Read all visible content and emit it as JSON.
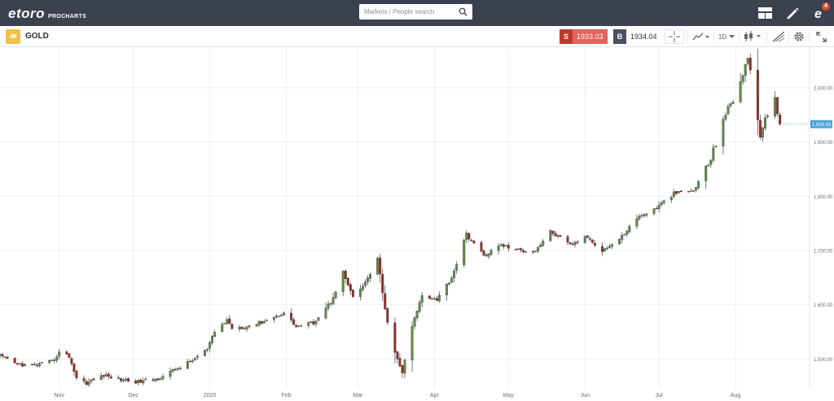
{
  "header": {
    "logo_text": "etoro",
    "logo_sub": "PROCHARTS",
    "search_placeholder": "Markets / People search",
    "notification_count": "4"
  },
  "instrument": {
    "name": "GOLD",
    "sell_label": "S",
    "sell_price": "1933.03",
    "buy_label": "B",
    "buy_price": "1934.04",
    "timeframe": "1D"
  },
  "colors": {
    "topbar": "#3c4150",
    "sell": "#e0645a",
    "sell_letter": "#c0392b",
    "buy_letter": "#4a5060",
    "bull": "#5e8a4a",
    "bear": "#9a2a24",
    "price_tag": "#4aa3d9"
  },
  "chart_data": {
    "type": "candlestick",
    "title": "",
    "grid": true,
    "ylim": [
      1445,
      2075
    ],
    "y_ticks": [
      1500,
      1600,
      1700,
      1800,
      1900,
      2000
    ],
    "y_tick_labels": [
      "1,500.00",
      "1,600.00",
      "1,700.00",
      "1,800.00",
      "1,900.00",
      "2,000.00"
    ],
    "x_tick_labels": [
      {
        "date": "2019-11-01",
        "label": "Nov"
      },
      {
        "date": "2019-12-01",
        "label": "Dec"
      },
      {
        "date": "2020-01-01",
        "label": "2020"
      },
      {
        "date": "2020-02-01",
        "label": "Feb"
      },
      {
        "date": "2020-03-01",
        "label": "Mar"
      },
      {
        "date": "2020-04-01",
        "label": "Apr"
      },
      {
        "date": "2020-05-01",
        "label": "May"
      },
      {
        "date": "2020-06-01",
        "label": "Jun"
      },
      {
        "date": "2020-07-01",
        "label": "Jul"
      },
      {
        "date": "2020-08-01",
        "label": "Aug"
      }
    ],
    "x_start": "2019-10-08",
    "x_end": "2020-08-31",
    "last_price": 1933.03,
    "last_price_label": "1,933.03",
    "close_path": [
      [
        "2019-10-08",
        1505
      ],
      [
        "2019-10-15",
        1490
      ],
      [
        "2019-10-22",
        1488
      ],
      [
        "2019-10-29",
        1495
      ],
      [
        "2019-11-01",
        1512
      ],
      [
        "2019-11-05",
        1505
      ],
      [
        "2019-11-08",
        1465
      ],
      [
        "2019-11-12",
        1456
      ],
      [
        "2019-11-19",
        1470
      ],
      [
        "2019-11-26",
        1462
      ],
      [
        "2019-12-03",
        1458
      ],
      [
        "2019-12-10",
        1462
      ],
      [
        "2019-12-17",
        1478
      ],
      [
        "2019-12-24",
        1495
      ],
      [
        "2019-12-31",
        1518
      ],
      [
        "2020-01-03",
        1550
      ],
      [
        "2020-01-08",
        1572
      ],
      [
        "2020-01-10",
        1558
      ],
      [
        "2020-01-17",
        1560
      ],
      [
        "2020-01-24",
        1572
      ],
      [
        "2020-01-31",
        1585
      ],
      [
        "2020-02-05",
        1560
      ],
      [
        "2020-02-12",
        1567
      ],
      [
        "2020-02-19",
        1605
      ],
      [
        "2020-02-24",
        1660
      ],
      [
        "2020-02-28",
        1612
      ],
      [
        "2020-03-04",
        1640
      ],
      [
        "2020-03-09",
        1685
      ],
      [
        "2020-03-12",
        1590
      ],
      [
        "2020-03-16",
        1510
      ],
      [
        "2020-03-19",
        1475
      ],
      [
        "2020-03-23",
        1560
      ],
      [
        "2020-03-27",
        1618
      ],
      [
        "2020-04-02",
        1610
      ],
      [
        "2020-04-08",
        1650
      ],
      [
        "2020-04-14",
        1730
      ],
      [
        "2020-04-21",
        1690
      ],
      [
        "2020-04-28",
        1710
      ],
      [
        "2020-05-05",
        1700
      ],
      [
        "2020-05-12",
        1700
      ],
      [
        "2020-05-18",
        1735
      ],
      [
        "2020-05-26",
        1710
      ],
      [
        "2020-06-02",
        1725
      ],
      [
        "2020-06-08",
        1700
      ],
      [
        "2020-06-15",
        1720
      ],
      [
        "2020-06-22",
        1760
      ],
      [
        "2020-06-29",
        1775
      ],
      [
        "2020-07-07",
        1805
      ],
      [
        "2020-07-15",
        1810
      ],
      [
        "2020-07-22",
        1868
      ],
      [
        "2020-07-27",
        1945
      ],
      [
        "2020-07-31",
        1975
      ],
      [
        "2020-08-06",
        2055
      ],
      [
        "2020-08-11",
        1915
      ],
      [
        "2020-08-17",
        1985
      ],
      [
        "2020-08-19",
        1933
      ]
    ]
  },
  "controls": {
    "zoom_out": "−",
    "zoom_in": "+"
  }
}
